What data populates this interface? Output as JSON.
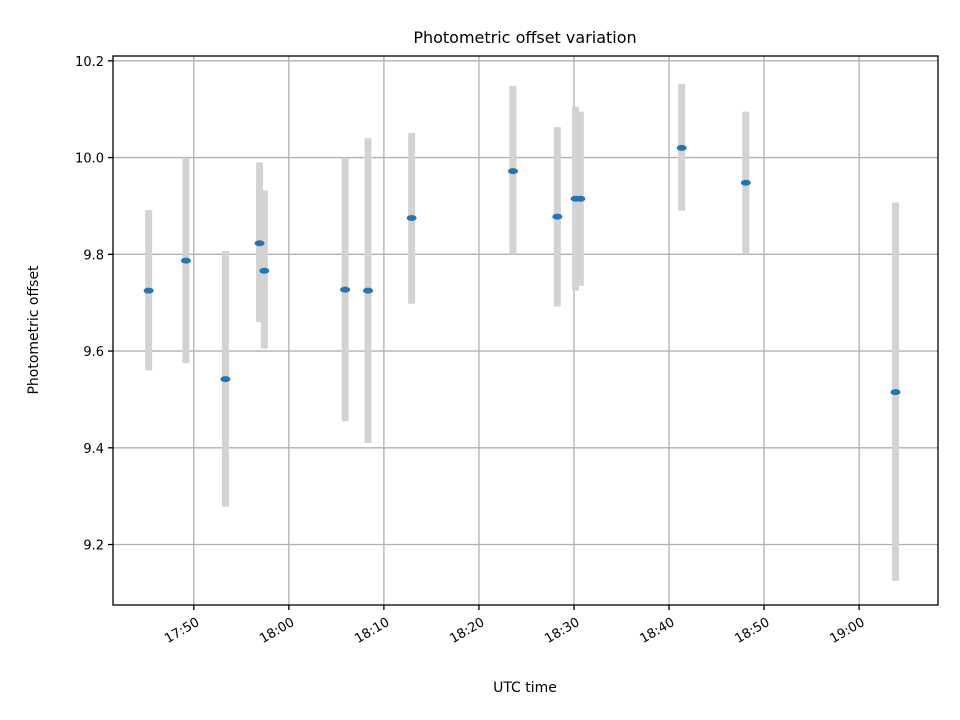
{
  "chart_data": {
    "type": "scatter",
    "title": "Photometric offset variation",
    "xlabel": "UTC time",
    "ylabel": "Photometric offset",
    "x_tick_labels": [
      "17:50",
      "18:00",
      "18:10",
      "18:20",
      "18:30",
      "18:40",
      "18:50",
      "19:00"
    ],
    "x_tick_minutes": [
      1070,
      1080,
      1090,
      1100,
      1110,
      1120,
      1130,
      1140
    ],
    "xlim_minutes": [
      1061.5,
      1148.3
    ],
    "y_ticks": [
      9.2,
      9.4,
      9.6,
      9.8,
      10.0,
      10.2
    ],
    "y_tick_labels": [
      "9.2",
      "9.4",
      "9.6",
      "9.8",
      "10.0",
      "10.2"
    ],
    "ylim": [
      9.075,
      10.21
    ],
    "grid": true,
    "colors": {
      "point": "#1f77b4",
      "errorbar": "#d3d3d3"
    },
    "points": [
      {
        "time": "17:45:15",
        "t": 1065.25,
        "y": 9.725,
        "ylo": 9.56,
        "yhi": 9.892
      },
      {
        "time": "17:49:10",
        "t": 1069.17,
        "y": 9.787,
        "ylo": 9.575,
        "yhi": 10.0
      },
      {
        "time": "17:53:20",
        "t": 1073.33,
        "y": 9.542,
        "ylo": 9.278,
        "yhi": 9.807
      },
      {
        "time": "17:56:55",
        "t": 1076.92,
        "y": 9.823,
        "ylo": 9.66,
        "yhi": 9.99
      },
      {
        "time": "17:57:25",
        "t": 1077.42,
        "y": 9.766,
        "ylo": 9.605,
        "yhi": 9.932
      },
      {
        "time": "18:05:55",
        "t": 1085.92,
        "y": 9.727,
        "ylo": 9.455,
        "yhi": 10.0
      },
      {
        "time": "18:08:20",
        "t": 1088.33,
        "y": 9.725,
        "ylo": 9.41,
        "yhi": 10.04
      },
      {
        "time": "18:12:55",
        "t": 1092.92,
        "y": 9.875,
        "ylo": 9.698,
        "yhi": 10.051
      },
      {
        "time": "18:23:35",
        "t": 1103.58,
        "y": 9.972,
        "ylo": 9.8,
        "yhi": 10.148
      },
      {
        "time": "18:28:15",
        "t": 1108.25,
        "y": 9.878,
        "ylo": 9.692,
        "yhi": 10.063
      },
      {
        "time": "18:30:10",
        "t": 1110.17,
        "y": 9.915,
        "ylo": 9.725,
        "yhi": 10.105
      },
      {
        "time": "18:30:40",
        "t": 1110.67,
        "y": 9.915,
        "ylo": 9.735,
        "yhi": 10.095
      },
      {
        "time": "18:41:20",
        "t": 1121.33,
        "y": 10.02,
        "ylo": 9.89,
        "yhi": 10.152
      },
      {
        "time": "18:48:05",
        "t": 1128.08,
        "y": 9.948,
        "ylo": 9.8,
        "yhi": 10.095
      },
      {
        "time": "19:03:50",
        "t": 1143.83,
        "y": 9.515,
        "ylo": 9.125,
        "yhi": 9.907
      }
    ]
  }
}
